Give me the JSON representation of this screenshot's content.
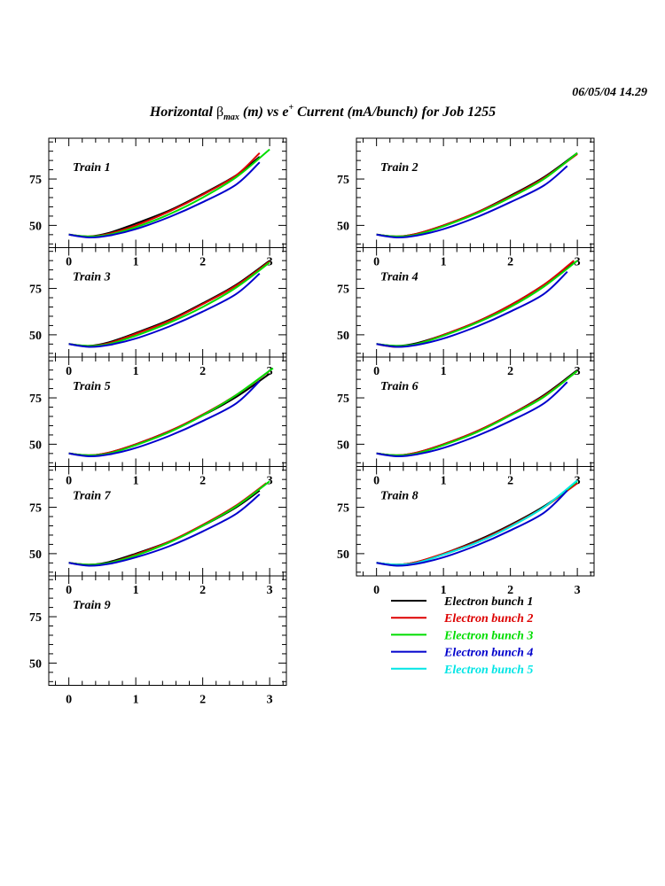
{
  "header": {
    "timestamp": "06/05/04   14.29",
    "title_pre": "Horizontal ",
    "title_beta": "β",
    "title_sub": "max",
    "title_mid": " (m) vs e",
    "title_sup": "+",
    "title_post": " Current (mA/bunch) for Job 1255"
  },
  "chart_data": {
    "type": "line",
    "xlim": [
      -0.3,
      3.25
    ],
    "ylim": [
      38,
      97
    ],
    "xticks": [
      0,
      1,
      2,
      3
    ],
    "xticklabels": [
      "0",
      "1",
      "2",
      "3"
    ],
    "yticks": [
      50,
      75
    ],
    "yticklabels": [
      "50",
      "75"
    ],
    "grid": false,
    "legend_position": "bottom-right",
    "series_styles": [
      {
        "name": "Electron bunch 1",
        "color": "#000000"
      },
      {
        "name": "Electron bunch 2",
        "color": "#dd0000"
      },
      {
        "name": "Electron bunch 3",
        "color": "#00dd00"
      },
      {
        "name": "Electron bunch 4",
        "color": "#0000cc"
      },
      {
        "name": "Electron bunch 5",
        "color": "#00e5e5"
      }
    ],
    "panels": [
      {
        "label": "Train 1",
        "series": [
          {
            "name": "Electron bunch 1",
            "x": [
              0,
              0.3,
              0.6,
              1.0,
              1.5,
              2.0,
              2.5,
              2.85
            ],
            "y": [
              45,
              44,
              46,
              51,
              58,
              67,
              77,
              87
            ]
          },
          {
            "name": "Electron bunch 2",
            "x": [
              0,
              0.3,
              0.6,
              1.0,
              1.5,
              2.0,
              2.5,
              2.85
            ],
            "y": [
              45,
              44,
              45.5,
              50,
              57.5,
              66.5,
              77,
              89
            ]
          },
          {
            "name": "Electron bunch 3",
            "x": [
              0,
              0.3,
              0.6,
              1.0,
              1.5,
              2.0,
              2.5,
              3.0
            ],
            "y": [
              45,
              44,
              45,
              49,
              56,
              65,
              76,
              91
            ]
          },
          {
            "name": "Electron bunch 4",
            "x": [
              0,
              0.3,
              0.6,
              1.0,
              1.5,
              2.0,
              2.5,
              2.85
            ],
            "y": [
              45,
              43.5,
              44.5,
              48,
              54.5,
              62.5,
              72,
              84
            ]
          }
        ]
      },
      {
        "label": "Train 2",
        "series": [
          {
            "name": "Electron bunch 1",
            "x": [
              0,
              0.3,
              0.6,
              1.0,
              1.5,
              2.0,
              2.5,
              3.0
            ],
            "y": [
              45,
              44,
              45.5,
              50,
              57,
              66,
              76,
              89
            ]
          },
          {
            "name": "Electron bunch 2",
            "x": [
              0,
              0.3,
              0.6,
              1.0,
              1.5,
              2.0,
              2.5,
              3.0
            ],
            "y": [
              45,
              44,
              45.5,
              50,
              57,
              65.5,
              75.5,
              88.5
            ]
          },
          {
            "name": "Electron bunch 3",
            "x": [
              0,
              0.3,
              0.6,
              1.0,
              1.5,
              2.0,
              2.5,
              3.0
            ],
            "y": [
              45,
              44,
              45,
              49.5,
              56.5,
              65,
              75,
              89
            ]
          },
          {
            "name": "Electron bunch 4",
            "x": [
              0,
              0.3,
              0.6,
              1.0,
              1.5,
              2.0,
              2.5,
              2.85
            ],
            "y": [
              45,
              43.5,
              44.5,
              48,
              54.5,
              62.5,
              71.5,
              82
            ]
          }
        ]
      },
      {
        "label": "Train 3",
        "series": [
          {
            "name": "Electron bunch 1",
            "x": [
              0,
              0.3,
              0.6,
              1.0,
              1.5,
              2.0,
              2.5,
              3.0
            ],
            "y": [
              45,
              44,
              46,
              51,
              58,
              67,
              77,
              90
            ]
          },
          {
            "name": "Electron bunch 2",
            "x": [
              0,
              0.3,
              0.6,
              1.0,
              1.5,
              2.0,
              2.5,
              3.0
            ],
            "y": [
              45,
              44,
              45.5,
              50.5,
              57.5,
              66.5,
              76.5,
              89.5
            ]
          },
          {
            "name": "Electron bunch 3",
            "x": [
              0,
              0.3,
              0.6,
              1.0,
              1.5,
              2.0,
              2.5,
              3.0
            ],
            "y": [
              45,
              44,
              45,
              49.5,
              56.5,
              65,
              75.5,
              89
            ]
          },
          {
            "name": "Electron bunch 4",
            "x": [
              0,
              0.3,
              0.6,
              1.0,
              1.5,
              2.0,
              2.5,
              2.85
            ],
            "y": [
              45,
              43.5,
              44.5,
              48,
              54.5,
              62.5,
              72,
              83
            ]
          }
        ]
      },
      {
        "label": "Train 4",
        "series": [
          {
            "name": "Electron bunch 1",
            "x": [
              0,
              0.3,
              0.6,
              1.0,
              1.5,
              2.0,
              2.5,
              2.95
            ],
            "y": [
              45,
              44,
              45.5,
              50,
              57,
              66,
              77,
              89
            ]
          },
          {
            "name": "Electron bunch 2",
            "x": [
              0,
              0.3,
              0.6,
              1.0,
              1.5,
              2.0,
              2.5,
              2.95
            ],
            "y": [
              45,
              43.5,
              45,
              50,
              57,
              66,
              77,
              90
            ]
          },
          {
            "name": "Electron bunch 3",
            "x": [
              0,
              0.3,
              0.6,
              1.0,
              1.5,
              2.0,
              2.5,
              3.0
            ],
            "y": [
              45,
              44,
              45,
              49.5,
              56.5,
              65,
              76,
              90
            ]
          },
          {
            "name": "Electron bunch 4",
            "x": [
              0,
              0.3,
              0.6,
              1.0,
              1.5,
              2.0,
              2.5,
              2.85
            ],
            "y": [
              45,
              43.5,
              44.5,
              48,
              54.5,
              62.5,
              72,
              84
            ]
          }
        ]
      },
      {
        "label": "Train 5",
        "series": [
          {
            "name": "Electron bunch 1",
            "x": [
              0,
              0.3,
              0.6,
              1.0,
              1.5,
              2.0,
              2.5,
              3.0
            ],
            "y": [
              45,
              44,
              45.5,
              50,
              57,
              65.5,
              75.5,
              88
            ]
          },
          {
            "name": "Electron bunch 2",
            "x": [
              0,
              0.3,
              0.6,
              1.0,
              1.5,
              2.0,
              2.5,
              3.0
            ],
            "y": [
              45,
              44,
              45.5,
              50,
              57,
              66,
              76.5,
              89.5
            ]
          },
          {
            "name": "Electron bunch 3",
            "x": [
              0,
              0.3,
              0.6,
              1.0,
              1.5,
              2.0,
              2.5,
              3.05
            ],
            "y": [
              45,
              44,
              45,
              49.5,
              56.5,
              65.5,
              76.5,
              91
            ]
          },
          {
            "name": "Electron bunch 4",
            "x": [
              0,
              0.3,
              0.6,
              1.0,
              1.5,
              2.0,
              2.5,
              2.85
            ],
            "y": [
              45,
              43.5,
              44.5,
              48,
              54.5,
              62.5,
              72,
              84
            ]
          }
        ]
      },
      {
        "label": "Train 6",
        "series": [
          {
            "name": "Electron bunch 1",
            "x": [
              0,
              0.3,
              0.6,
              1.0,
              1.5,
              2.0,
              2.5,
              3.0
            ],
            "y": [
              45,
              44,
              45.5,
              50,
              57,
              66,
              76.5,
              90
            ]
          },
          {
            "name": "Electron bunch 2",
            "x": [
              0,
              0.3,
              0.6,
              1.0,
              1.5,
              2.0,
              2.5,
              3.0
            ],
            "y": [
              45,
              44,
              45.5,
              50,
              57,
              66,
              76,
              89.5
            ]
          },
          {
            "name": "Electron bunch 3",
            "x": [
              0,
              0.3,
              0.6,
              1.0,
              1.5,
              2.0,
              2.5,
              3.0
            ],
            "y": [
              45,
              44,
              45,
              49.5,
              56.5,
              65.5,
              75.5,
              89.5
            ]
          },
          {
            "name": "Electron bunch 4",
            "x": [
              0,
              0.3,
              0.6,
              1.0,
              1.5,
              2.0,
              2.5,
              2.85
            ],
            "y": [
              45,
              43.5,
              44.5,
              48,
              54.5,
              62.5,
              72,
              83.5
            ]
          }
        ]
      },
      {
        "label": "Train 7",
        "series": [
          {
            "name": "Electron bunch 1",
            "x": [
              0,
              0.3,
              0.6,
              1.0,
              1.5,
              2.0,
              2.5,
              2.85
            ],
            "y": [
              45,
              44,
              45.5,
              50,
              56.5,
              65,
              75,
              84
            ]
          },
          {
            "name": "Electron bunch 2",
            "x": [
              0,
              0.3,
              0.6,
              1.0,
              1.5,
              2.0,
              2.5,
              2.95
            ],
            "y": [
              45,
              44,
              45,
              49.5,
              56.5,
              65.5,
              76,
              88
            ]
          },
          {
            "name": "Electron bunch 3",
            "x": [
              0,
              0.3,
              0.6,
              1.0,
              1.5,
              2.0,
              2.5,
              3.0
            ],
            "y": [
              45,
              44,
              45,
              49,
              56,
              65,
              75.5,
              89
            ]
          },
          {
            "name": "Electron bunch 4",
            "x": [
              0,
              0.3,
              0.6,
              1.0,
              1.5,
              2.0,
              2.5,
              2.85
            ],
            "y": [
              45,
              43.5,
              44.5,
              48,
              54,
              62,
              71.5,
              82
            ]
          }
        ]
      },
      {
        "label": "Train 8",
        "series": [
          {
            "name": "Electron bunch 1",
            "x": [
              0,
              0.3,
              0.6,
              1.0,
              1.5,
              2.0,
              2.5,
              3.0
            ],
            "y": [
              45,
              44,
              45.5,
              50,
              57,
              65.5,
              75.5,
              88
            ]
          },
          {
            "name": "Electron bunch 2",
            "x": [
              0,
              0.3,
              0.6,
              1.0,
              1.5,
              2.0,
              2.5,
              3.0
            ],
            "y": [
              45,
              44,
              45.5,
              50,
              56.5,
              65,
              75,
              88
            ]
          },
          {
            "name": "Electron bunch 3",
            "x": [
              0,
              0.3,
              0.6,
              1.0,
              1.5,
              2.0,
              2.5,
              3.0
            ],
            "y": [
              45,
              44,
              45,
              49.5,
              56,
              64.5,
              75,
              89
            ]
          },
          {
            "name": "Electron bunch 5",
            "x": [
              0,
              0.3,
              0.6,
              1.0,
              1.5,
              2.0,
              2.5,
              3.0
            ],
            "y": [
              45,
              44,
              45,
              49.5,
              56,
              64.5,
              75,
              89.5
            ]
          },
          {
            "name": "Electron bunch 4",
            "x": [
              0,
              0.3,
              0.6,
              1.0,
              1.5,
              2.0,
              2.5,
              2.85
            ],
            "y": [
              45,
              43.5,
              44.5,
              48,
              54.5,
              62.5,
              72,
              84
            ]
          }
        ]
      },
      {
        "label": "Train 9",
        "series": []
      }
    ],
    "legend": [
      "Electron bunch 1",
      "Electron bunch 2",
      "Electron bunch 3",
      "Electron bunch 4",
      "Electron bunch 5"
    ]
  }
}
